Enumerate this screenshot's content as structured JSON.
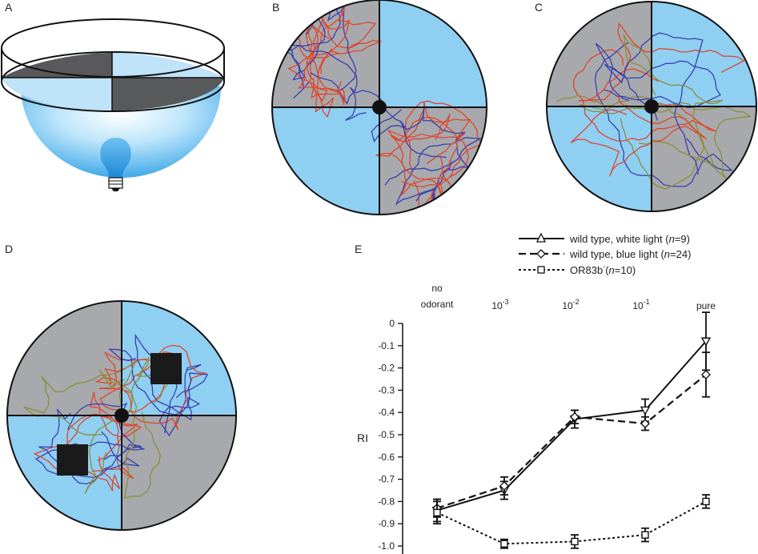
{
  "panels": {
    "A": {
      "label": "A"
    },
    "B": {
      "label": "B"
    },
    "C": {
      "label": "C"
    },
    "D": {
      "label": "D"
    },
    "E": {
      "label": "E"
    }
  },
  "colors": {
    "light_blue": "#8fcff2",
    "gray": "#a7a9ac",
    "dark": "#58595b",
    "trace_red": "#e0452b",
    "trace_blue": "#3a3fb0",
    "trace_olive": "#8d8d3a"
  },
  "chart_data": {
    "type": "line",
    "ylabel": "RI",
    "categories": [
      "no odorant",
      "10-3",
      "10-2",
      "10-1",
      "pure"
    ],
    "category_labels": [
      {
        "lines": [
          "no",
          "odorant"
        ],
        "sup": ""
      },
      {
        "lines": [
          "10"
        ],
        "sup": "-3"
      },
      {
        "lines": [
          "10"
        ],
        "sup": "-2"
      },
      {
        "lines": [
          "10"
        ],
        "sup": "-1"
      },
      {
        "lines": [
          "pure"
        ],
        "sup": ""
      }
    ],
    "ylim": [
      -1.0,
      0
    ],
    "yticks": [
      "0",
      "-0.1",
      "-0.2",
      "-0.3",
      "-0.4",
      "-0.5",
      "-0.6",
      "-0.7",
      "-0.8",
      "-0.9",
      "-1.0"
    ],
    "ytick_values": [
      0,
      -0.1,
      -0.2,
      -0.3,
      -0.4,
      -0.5,
      -0.6,
      -0.7,
      -0.8,
      -0.9,
      -1.0
    ],
    "series": [
      {
        "name": "wild type, white light",
        "n_text": "n",
        "n_value": "=9",
        "style": "solid",
        "marker": "triangle",
        "values": [
          -0.84,
          -0.75,
          -0.43,
          -0.39,
          -0.08
        ],
        "err": [
          0.05,
          0.04,
          0.04,
          0.05,
          0.13
        ]
      },
      {
        "name": "wild type, blue light",
        "n_text": "n",
        "n_value": "=24",
        "style": "dashed",
        "marker": "diamond",
        "values": [
          -0.83,
          -0.73,
          -0.42,
          -0.45,
          -0.23
        ],
        "err": [
          0.04,
          0.04,
          0.03,
          0.03,
          0.1
        ]
      },
      {
        "name": "OR83b",
        "name_sup": "-",
        "n_text": "n",
        "n_value": "=10",
        "style": "dotted",
        "marker": "square",
        "values": [
          -0.85,
          -0.99,
          -0.98,
          -0.95,
          -0.8
        ],
        "err": [
          0.05,
          0.02,
          0.03,
          0.03,
          0.03
        ]
      }
    ]
  }
}
